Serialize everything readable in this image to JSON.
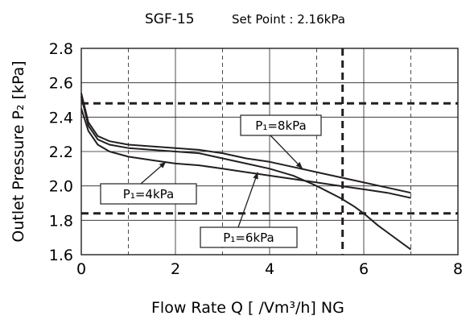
{
  "chart_data": {
    "type": "line",
    "title": "SGF-15",
    "subtitle": "Set Point : 2.16kPa",
    "xlabel": "Flow Rate Q [ /Vm³/h] NG",
    "ylabel": "Outlet Pressure P₂ [kPa]",
    "xlim": [
      0,
      8
    ],
    "ylim": [
      1.6,
      2.8
    ],
    "xticks": [
      0,
      2,
      4,
      6,
      8
    ],
    "xtick_labels": [
      "0",
      "2",
      "4",
      "6",
      "8"
    ],
    "yticks": [
      1.6,
      1.8,
      2.0,
      2.2,
      2.4,
      2.6,
      2.8
    ],
    "ytick_labels": [
      "1.6",
      "1.8",
      "2.0",
      "2.2",
      "2.4",
      "2.6",
      "2.8"
    ],
    "minor_x_gridlines": [
      1,
      3,
      5,
      7
    ],
    "series": [
      {
        "name": "P₁=8kPa",
        "x": [
          0,
          0.15,
          0.35,
          0.6,
          1.0,
          1.5,
          2.0,
          2.5,
          3.0,
          3.5,
          4.0,
          4.5,
          5.0,
          5.5,
          6.0,
          6.5,
          7.0
        ],
        "y": [
          2.54,
          2.37,
          2.29,
          2.26,
          2.24,
          2.23,
          2.22,
          2.21,
          2.19,
          2.16,
          2.14,
          2.11,
          2.08,
          2.05,
          2.02,
          1.99,
          1.96
        ]
      },
      {
        "name": "P₁=6kPa",
        "x": [
          0,
          0.15,
          0.35,
          0.6,
          1.0,
          1.5,
          2.0,
          2.5,
          3.0,
          3.5,
          4.0,
          4.5,
          5.0,
          5.5,
          5.8,
          6.0,
          6.3,
          6.6,
          7.0
        ],
        "y": [
          2.52,
          2.35,
          2.27,
          2.24,
          2.22,
          2.21,
          2.2,
          2.19,
          2.16,
          2.13,
          2.1,
          2.06,
          2.0,
          1.93,
          1.88,
          1.84,
          1.77,
          1.71,
          1.63
        ]
      },
      {
        "name": "P₁=4kPa",
        "x": [
          0,
          0.15,
          0.35,
          0.6,
          1.0,
          1.5,
          2.0,
          2.5,
          3.0,
          3.5,
          4.0,
          4.5,
          5.0,
          5.5,
          6.0,
          6.5,
          7.0
        ],
        "y": [
          2.45,
          2.32,
          2.24,
          2.2,
          2.17,
          2.15,
          2.13,
          2.12,
          2.1,
          2.08,
          2.06,
          2.04,
          2.02,
          2.0,
          1.98,
          1.96,
          1.93
        ]
      }
    ],
    "reference_lines": {
      "horizontal": [
        2.48,
        1.84
      ],
      "vertical": [
        5.55
      ]
    },
    "annotations": [
      {
        "text": "P₁=8kPa",
        "series": "P₁=8kPa",
        "point": [
          4.7,
          2.1
        ]
      },
      {
        "text": "P₁=4kPa",
        "series": "P₁=4kPa",
        "point": [
          1.8,
          2.14
        ]
      },
      {
        "text": "P₁=6kPa",
        "series": "P₁=6kPa",
        "point": [
          3.75,
          2.08
        ]
      }
    ]
  }
}
